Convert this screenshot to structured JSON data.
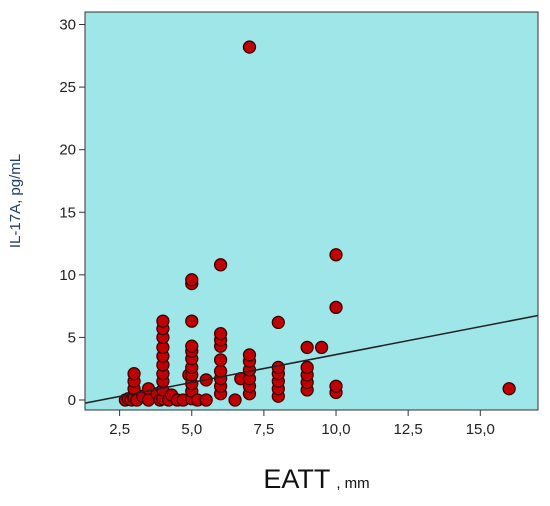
{
  "chart_data": {
    "type": "scatter",
    "xlabel": "EATT",
    "xlabel_unit": ", mm",
    "ylabel": "IL-17A,  pg/mL",
    "xlim": [
      1.3,
      17.0
    ],
    "ylim": [
      -0.8,
      31.0
    ],
    "x_ticks": [
      2.5,
      5.0,
      7.5,
      10.0,
      12.5,
      15.0
    ],
    "x_tick_labels": [
      "2,5",
      "5,0",
      "7,5",
      "10,0",
      "12,5",
      "15,0"
    ],
    "y_ticks": [
      0,
      5,
      10,
      15,
      20,
      25,
      30
    ],
    "y_tick_labels": [
      "0",
      "5",
      "10",
      "15",
      "20",
      "25",
      "30"
    ],
    "grid": false,
    "colors": {
      "plot_background": "#9ee6e8",
      "point_fill": "#c00000",
      "point_edge": "#3a0000",
      "fit_line": "#222222"
    },
    "fit_line": {
      "x": [
        1.3,
        17.0
      ],
      "y": [
        -0.25,
        6.75
      ]
    },
    "points": [
      {
        "x": 2.7,
        "y": 0.0
      },
      {
        "x": 2.8,
        "y": 0.1
      },
      {
        "x": 2.9,
        "y": 0.0
      },
      {
        "x": 3.0,
        "y": 0.2
      },
      {
        "x": 3.0,
        "y": 0.9
      },
      {
        "x": 3.0,
        "y": 1.5
      },
      {
        "x": 3.0,
        "y": 2.1
      },
      {
        "x": 3.1,
        "y": 0.0
      },
      {
        "x": 3.3,
        "y": 0.3
      },
      {
        "x": 3.5,
        "y": 0.9
      },
      {
        "x": 3.5,
        "y": 0.0
      },
      {
        "x": 3.8,
        "y": 0.5
      },
      {
        "x": 3.9,
        "y": 0.0
      },
      {
        "x": 4.0,
        "y": 0.1
      },
      {
        "x": 4.0,
        "y": 0.8
      },
      {
        "x": 4.0,
        "y": 1.5
      },
      {
        "x": 4.0,
        "y": 2.1
      },
      {
        "x": 4.0,
        "y": 2.8
      },
      {
        "x": 4.0,
        "y": 3.5
      },
      {
        "x": 4.0,
        "y": 4.2
      },
      {
        "x": 4.0,
        "y": 5.0
      },
      {
        "x": 4.0,
        "y": 5.7
      },
      {
        "x": 4.0,
        "y": 6.3
      },
      {
        "x": 4.2,
        "y": 0.0
      },
      {
        "x": 4.3,
        "y": 0.4
      },
      {
        "x": 4.5,
        "y": 0.0
      },
      {
        "x": 4.7,
        "y": 0.0
      },
      {
        "x": 4.9,
        "y": 2.0
      },
      {
        "x": 5.0,
        "y": 0.1
      },
      {
        "x": 5.0,
        "y": 0.7
      },
      {
        "x": 5.0,
        "y": 1.3
      },
      {
        "x": 5.0,
        "y": 2.0
      },
      {
        "x": 5.0,
        "y": 2.6
      },
      {
        "x": 5.0,
        "y": 3.3
      },
      {
        "x": 5.0,
        "y": 3.9
      },
      {
        "x": 5.0,
        "y": 4.3
      },
      {
        "x": 5.0,
        "y": 6.3
      },
      {
        "x": 5.0,
        "y": 9.3
      },
      {
        "x": 5.0,
        "y": 9.6
      },
      {
        "x": 5.2,
        "y": 0.0
      },
      {
        "x": 5.5,
        "y": 1.6
      },
      {
        "x": 5.5,
        "y": 0.0
      },
      {
        "x": 6.0,
        "y": 0.5
      },
      {
        "x": 6.0,
        "y": 1.1
      },
      {
        "x": 6.0,
        "y": 1.7
      },
      {
        "x": 6.0,
        "y": 2.3
      },
      {
        "x": 6.0,
        "y": 3.2
      },
      {
        "x": 6.0,
        "y": 4.3
      },
      {
        "x": 6.0,
        "y": 4.8
      },
      {
        "x": 6.0,
        "y": 5.3
      },
      {
        "x": 6.0,
        "y": 10.8
      },
      {
        "x": 6.5,
        "y": 0.0
      },
      {
        "x": 6.7,
        "y": 1.7
      },
      {
        "x": 7.0,
        "y": 0.5
      },
      {
        "x": 7.0,
        "y": 1.1
      },
      {
        "x": 7.0,
        "y": 1.7
      },
      {
        "x": 7.0,
        "y": 2.4
      },
      {
        "x": 7.0,
        "y": 3.1
      },
      {
        "x": 7.0,
        "y": 3.6
      },
      {
        "x": 7.0,
        "y": 28.2
      },
      {
        "x": 8.0,
        "y": 0.3
      },
      {
        "x": 8.0,
        "y": 0.9
      },
      {
        "x": 8.0,
        "y": 1.5
      },
      {
        "x": 8.0,
        "y": 2.1
      },
      {
        "x": 8.0,
        "y": 2.6
      },
      {
        "x": 8.0,
        "y": 6.2
      },
      {
        "x": 9.0,
        "y": 0.8
      },
      {
        "x": 9.0,
        "y": 1.4
      },
      {
        "x": 9.0,
        "y": 2.0
      },
      {
        "x": 9.0,
        "y": 2.6
      },
      {
        "x": 9.0,
        "y": 4.2
      },
      {
        "x": 9.5,
        "y": 4.2
      },
      {
        "x": 10.0,
        "y": 0.6
      },
      {
        "x": 10.0,
        "y": 1.1
      },
      {
        "x": 10.0,
        "y": 7.4
      },
      {
        "x": 10.0,
        "y": 11.6
      },
      {
        "x": 16.0,
        "y": 0.9
      }
    ]
  }
}
